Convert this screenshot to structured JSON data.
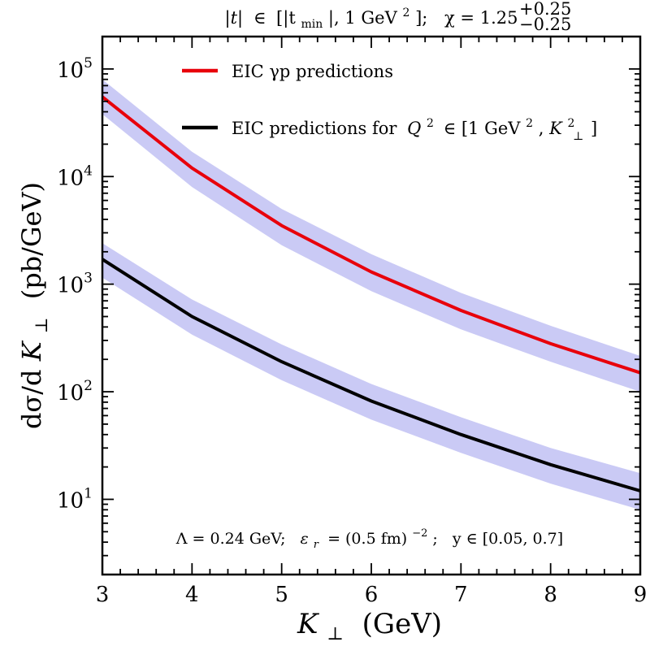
{
  "chart_data": {
    "type": "line",
    "title": "|t| ∈ [|t_min|, 1 GeV²];  χ = 1.25 (+0.25 / −0.25)",
    "title_parts": {
      "t_abs": "|t|",
      "in": "∈",
      "open": "[|t",
      "tmin_sub": "min",
      "mid": "|, 1 GeV",
      "sq": "2",
      "close": "];",
      "chi": "χ = 1.25",
      "sup": "+0.25",
      "sub": "−0.25"
    },
    "xlabel": "K⊥ (GeV)",
    "xlabel_parts": {
      "symbol": "K",
      "sub": "⊥",
      "unit": "(GeV)"
    },
    "ylabel": "dσ/dK⊥ (pb/GeV)",
    "ylabel_parts": {
      "pre": "dσ/d",
      "symbol": "K",
      "sub": "⊥",
      "unit": "(pb/GeV)"
    },
    "xlim": [
      3,
      9
    ],
    "ylim": [
      2,
      200000
    ],
    "yscale": "log",
    "x_ticks": [
      "3",
      "4",
      "5",
      "6",
      "7",
      "8",
      "9"
    ],
    "y_ticks": [
      {
        "base": "10",
        "exp": "1",
        "value": 10
      },
      {
        "base": "10",
        "exp": "2",
        "value": 100
      },
      {
        "base": "10",
        "exp": "3",
        "value": 1000
      },
      {
        "base": "10",
        "exp": "4",
        "value": 10000
      },
      {
        "base": "10",
        "exp": "5",
        "value": 100000
      }
    ],
    "x": [
      3,
      4,
      5,
      6,
      7,
      8,
      9
    ],
    "series": [
      {
        "name": "EIC γp predictions",
        "color": "#e8000b",
        "values": [
          55000,
          12000,
          3500,
          1300,
          570,
          280,
          150
        ],
        "band_lower": [
          38000,
          8000,
          2300,
          860,
          380,
          190,
          100
        ],
        "band_upper": [
          80000,
          17000,
          5000,
          1900,
          830,
          410,
          215
        ]
      },
      {
        "name": "EIC predictions for Q² ∈ [1 GeV², K⊥²]",
        "color": "#000000",
        "values": [
          1700,
          500,
          190,
          82,
          40,
          21,
          12
        ],
        "band_lower": [
          1150,
          340,
          128,
          55,
          27,
          14,
          8
        ],
        "band_upper": [
          2400,
          720,
          275,
          118,
          58,
          30,
          17.5
        ]
      }
    ],
    "band_color": "#cacaf5",
    "legend": [
      {
        "label": "EIC γp predictions",
        "color": "#e8000b"
      },
      {
        "label": "EIC predictions for Q² ∈ [1 GeV², K⊥²]",
        "color": "#000000",
        "parts": {
          "pre": "EIC predictions for",
          "q": "Q",
          "q_sup": "2",
          "in": "∈ [1 GeV",
          "g_sup": "2",
          "comma": ", ",
          "k": "K",
          "k_sup": "2",
          "k_sub": "⊥",
          "close": "]"
        }
      }
    ],
    "legend_position": "top-left",
    "annotation": "Λ = 0.24 GeV;  ε_r = (0.5 fm)^−2;  y ∈ [0.05, 0.7]",
    "annotation_parts": {
      "lambda": "Λ = 0.24 GeV;",
      "eps": "ε",
      "eps_sub": "r",
      "eps_rest": "= (0.5 fm)",
      "eps_sup": "−2",
      "semi": ";",
      "y": "y ∈ [0.05, 0.7]"
    }
  }
}
